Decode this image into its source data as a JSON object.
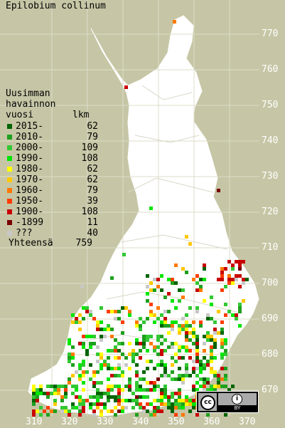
{
  "title": "Epilobium collinum",
  "legend": {
    "heading": [
      "Uusimman",
      "havainnon",
      "vuosi"
    ],
    "count_heading": "lkm",
    "items": [
      {
        "label": "2015-",
        "count": "62",
        "color": "#006400"
      },
      {
        "label": "2010-",
        "count": "79",
        "color": "#1ea01e"
      },
      {
        "label": "2000-",
        "count": "109",
        "color": "#32c832"
      },
      {
        "label": "1990-",
        "count": "108",
        "color": "#00e600"
      },
      {
        "label": "1980-",
        "count": "62",
        "color": "#ffff00"
      },
      {
        "label": "1970-",
        "count": "62",
        "color": "#ffc800"
      },
      {
        "label": "1960-",
        "count": "79",
        "color": "#ff7800"
      },
      {
        "label": "1950-",
        "count": "39",
        "color": "#ff3c00"
      },
      {
        "label": "1900-",
        "count": "108",
        "color": "#c80000"
      },
      {
        "label": "-1899",
        "count": "11",
        "color": "#780000"
      },
      {
        "label": "???",
        "count": "40",
        "color": "#c8c8c8"
      }
    ],
    "total_label": "Yhteensä",
    "total_count": "759"
  },
  "axes": {
    "y_ticks": [
      "770",
      "760",
      "750",
      "740",
      "730",
      "720",
      "710",
      "700",
      "690",
      "680",
      "670"
    ],
    "x_ticks": [
      "310",
      "320",
      "330",
      "340",
      "350",
      "360",
      "370"
    ]
  },
  "license": {
    "cc": "cc",
    "by": "BY"
  },
  "colors": {
    "background": "#c6c6a6",
    "land": "#ffffff",
    "grid": "#dcdcc8"
  }
}
